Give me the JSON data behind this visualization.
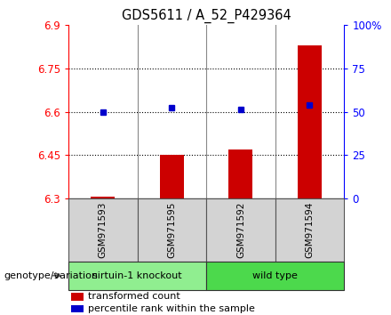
{
  "title": "GDS5611 / A_52_P429364",
  "samples": [
    "GSM971593",
    "GSM971595",
    "GSM971592",
    "GSM971594"
  ],
  "red_values": [
    6.305,
    6.45,
    6.47,
    6.83
  ],
  "blue_values": [
    6.6,
    6.615,
    6.607,
    6.625
  ],
  "ylim_left": [
    6.3,
    6.9
  ],
  "ylim_right": [
    0,
    100
  ],
  "yticks_left": [
    6.3,
    6.45,
    6.6,
    6.75,
    6.9
  ],
  "ytick_labels_left": [
    "6.3",
    "6.45",
    "6.6",
    "6.75",
    "6.9"
  ],
  "yticks_right": [
    0,
    25,
    50,
    75,
    100
  ],
  "ytick_labels_right": [
    "0",
    "25",
    "50",
    "75",
    "100%"
  ],
  "hlines": [
    6.75,
    6.6,
    6.45
  ],
  "groups": [
    {
      "label": "sirtuin-1 knockout",
      "samples": [
        0,
        1
      ],
      "color": "#90EE90"
    },
    {
      "label": "wild type",
      "samples": [
        2,
        3
      ],
      "color": "#4CD94C"
    }
  ],
  "legend_red": "transformed count",
  "legend_blue": "percentile rank within the sample",
  "bar_color": "#CC0000",
  "dot_color": "#0000CC",
  "bar_width": 0.35,
  "bottom_label": "genotype/variation"
}
